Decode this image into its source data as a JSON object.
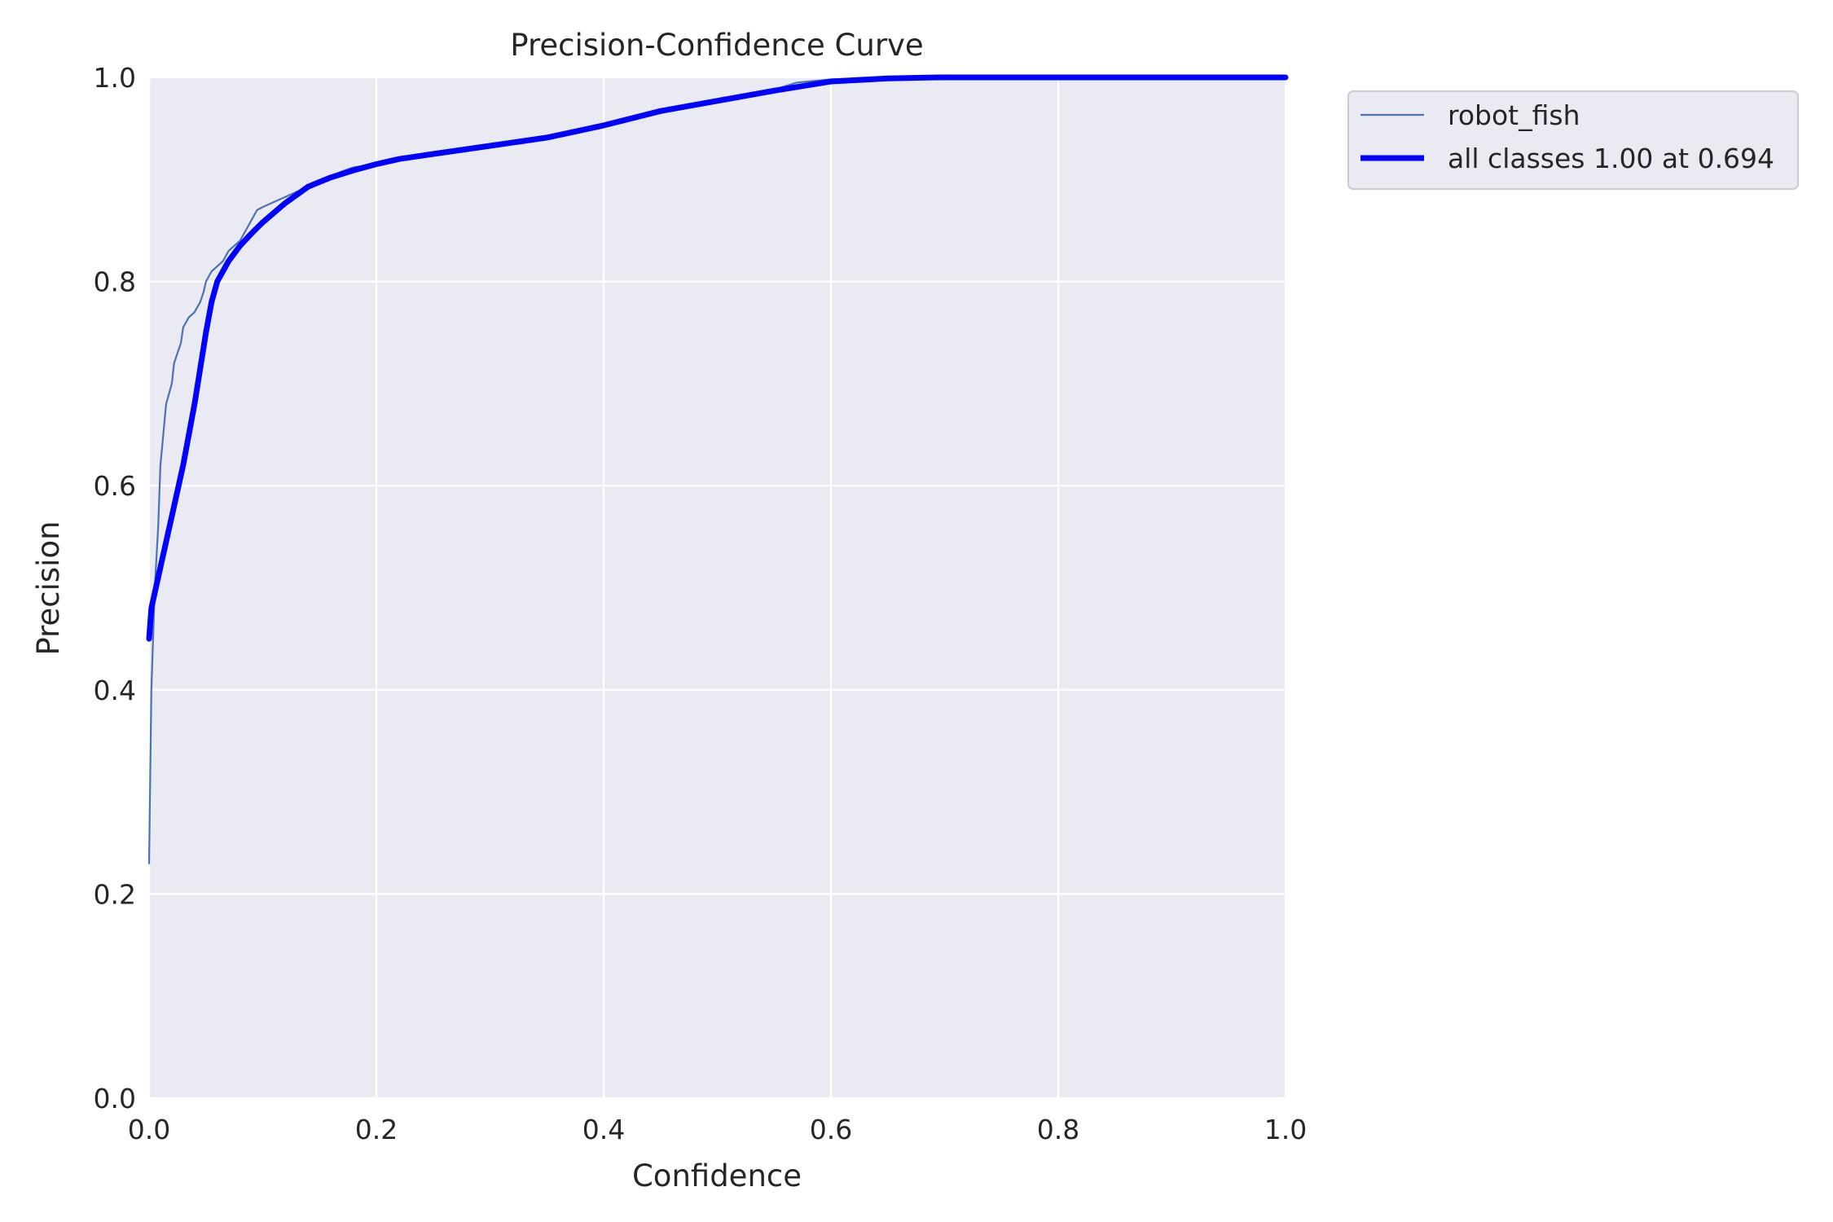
{
  "chart_data": {
    "type": "line",
    "title": "Precision-Confidence Curve",
    "xlabel": "Confidence",
    "ylabel": "Precision",
    "xlim": [
      0,
      1
    ],
    "ylim": [
      0,
      1
    ],
    "xticks": [
      "0.0",
      "0.2",
      "0.4",
      "0.6",
      "0.8",
      "1.0"
    ],
    "yticks": [
      "0.0",
      "0.2",
      "0.4",
      "0.6",
      "0.8",
      "1.0"
    ],
    "grid": true,
    "legend_position": "outside-top-right",
    "series": [
      {
        "name": "robot_fish",
        "color": "#4c72b0",
        "points": [
          [
            0.0,
            0.23
          ],
          [
            0.002,
            0.4
          ],
          [
            0.005,
            0.5
          ],
          [
            0.008,
            0.56
          ],
          [
            0.01,
            0.62
          ],
          [
            0.015,
            0.68
          ],
          [
            0.02,
            0.7
          ],
          [
            0.022,
            0.72
          ],
          [
            0.025,
            0.73
          ],
          [
            0.028,
            0.74
          ],
          [
            0.03,
            0.755
          ],
          [
            0.035,
            0.765
          ],
          [
            0.04,
            0.77
          ],
          [
            0.045,
            0.78
          ],
          [
            0.048,
            0.79
          ],
          [
            0.05,
            0.8
          ],
          [
            0.055,
            0.81
          ],
          [
            0.06,
            0.815
          ],
          [
            0.065,
            0.82
          ],
          [
            0.07,
            0.83
          ],
          [
            0.075,
            0.835
          ],
          [
            0.08,
            0.84
          ],
          [
            0.085,
            0.85
          ],
          [
            0.09,
            0.86
          ],
          [
            0.095,
            0.87
          ],
          [
            0.1,
            0.873
          ],
          [
            0.11,
            0.878
          ],
          [
            0.12,
            0.883
          ],
          [
            0.13,
            0.888
          ],
          [
            0.14,
            0.892
          ],
          [
            0.15,
            0.897
          ],
          [
            0.16,
            0.903
          ],
          [
            0.17,
            0.908
          ],
          [
            0.18,
            0.912
          ],
          [
            0.2,
            0.915
          ],
          [
            0.25,
            0.925
          ],
          [
            0.3,
            0.933
          ],
          [
            0.35,
            0.941
          ],
          [
            0.4,
            0.952
          ],
          [
            0.45,
            0.966
          ],
          [
            0.5,
            0.977
          ],
          [
            0.55,
            0.988
          ],
          [
            0.57,
            0.995
          ],
          [
            0.6,
            0.998
          ],
          [
            0.65,
            1.0
          ],
          [
            0.7,
            1.0
          ],
          [
            0.8,
            1.0
          ],
          [
            0.9,
            1.0
          ],
          [
            1.0,
            1.0
          ]
        ]
      },
      {
        "name": "all classes 1.00 at 0.694",
        "color": "#0000ff",
        "points": [
          [
            0.0,
            0.45
          ],
          [
            0.002,
            0.48
          ],
          [
            0.01,
            0.52
          ],
          [
            0.02,
            0.57
          ],
          [
            0.03,
            0.62
          ],
          [
            0.04,
            0.68
          ],
          [
            0.05,
            0.75
          ],
          [
            0.055,
            0.78
          ],
          [
            0.06,
            0.8
          ],
          [
            0.07,
            0.82
          ],
          [
            0.08,
            0.835
          ],
          [
            0.09,
            0.847
          ],
          [
            0.1,
            0.858
          ],
          [
            0.12,
            0.877
          ],
          [
            0.14,
            0.893
          ],
          [
            0.16,
            0.902
          ],
          [
            0.18,
            0.909
          ],
          [
            0.2,
            0.915
          ],
          [
            0.22,
            0.92
          ],
          [
            0.25,
            0.925
          ],
          [
            0.3,
            0.933
          ],
          [
            0.35,
            0.941
          ],
          [
            0.4,
            0.953
          ],
          [
            0.45,
            0.967
          ],
          [
            0.5,
            0.977
          ],
          [
            0.55,
            0.987
          ],
          [
            0.6,
            0.996
          ],
          [
            0.65,
            0.999
          ],
          [
            0.694,
            1.0
          ],
          [
            0.8,
            1.0
          ],
          [
            0.9,
            1.0
          ],
          [
            1.0,
            1.0
          ]
        ]
      }
    ]
  }
}
